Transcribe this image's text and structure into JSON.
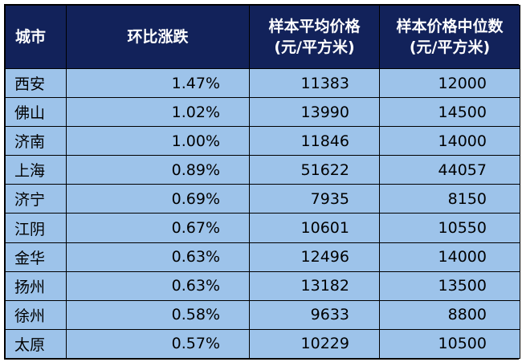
{
  "table": {
    "headers": {
      "city": "城市",
      "change": "环比涨跌",
      "avg_line1": "样本平均价格",
      "avg_line2": "(元/平方米)",
      "median_line1": "样本价格中位数",
      "median_line2": "(元/平方米)"
    },
    "rows": [
      {
        "city": "西安",
        "change": "1.47%",
        "avg": "11383",
        "median": "12000"
      },
      {
        "city": "佛山",
        "change": "1.02%",
        "avg": "13990",
        "median": "14500"
      },
      {
        "city": "济南",
        "change": "1.00%",
        "avg": "11846",
        "median": "14000"
      },
      {
        "city": "上海",
        "change": "0.89%",
        "avg": "51622",
        "median": "44057"
      },
      {
        "city": "济宁",
        "change": "0.69%",
        "avg": "7935",
        "median": "8150"
      },
      {
        "city": "江阴",
        "change": "0.67%",
        "avg": "10601",
        "median": "10550"
      },
      {
        "city": "金华",
        "change": "0.63%",
        "avg": "12496",
        "median": "14000"
      },
      {
        "city": "扬州",
        "change": "0.63%",
        "avg": "13182",
        "median": "13500"
      },
      {
        "city": "徐州",
        "change": "0.58%",
        "avg": "9633",
        "median": "8800"
      },
      {
        "city": "太原",
        "change": "0.57%",
        "avg": "10229",
        "median": "10500"
      }
    ]
  },
  "colors": {
    "header_bg": "#12225a",
    "header_text": "#ffffff",
    "row_bg": "#9dc3ea",
    "border": "#000000"
  }
}
